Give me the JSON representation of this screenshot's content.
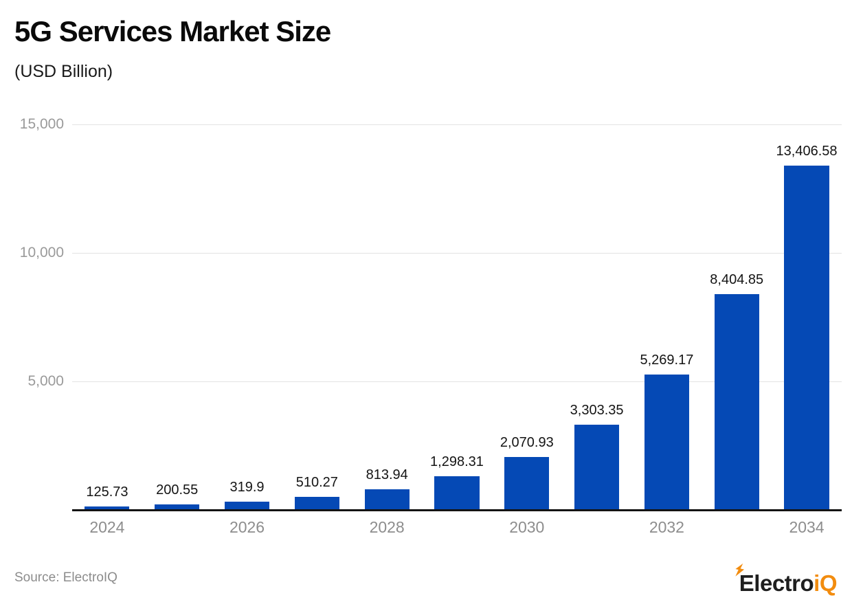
{
  "header": {
    "title": "5G Services Market Size",
    "subtitle": "(USD Billion)"
  },
  "chart_data": {
    "type": "bar",
    "title": "5G Services Market Size",
    "subtitle": "(USD Billion)",
    "xlabel": "",
    "ylabel": "USD Billion",
    "categories": [
      "2024",
      "2025",
      "2026",
      "2027",
      "2028",
      "2029",
      "2030",
      "2031",
      "2032",
      "2033",
      "2034"
    ],
    "values": [
      125.73,
      200.55,
      319.9,
      510.27,
      813.94,
      1298.31,
      2070.93,
      3303.35,
      5269.17,
      8404.85,
      13406.58
    ],
    "value_labels": [
      "125.73",
      "200.55",
      "319.9",
      "510.27",
      "813.94",
      "1,298.31",
      "2,070.93",
      "3,303.35",
      "5,269.17",
      "8,404.85",
      "13,406.58"
    ],
    "x_tick_labels": [
      "2024",
      "2026",
      "2028",
      "2030",
      "2032",
      "2034"
    ],
    "y_ticks": [
      5000,
      10000,
      15000
    ],
    "y_tick_labels": [
      "5,000",
      "10,000",
      "15,000"
    ],
    "ylim": [
      0,
      15000
    ],
    "grid": true,
    "legend": false,
    "colors": {
      "bar": "#0549B5",
      "gridline": "#E3E3E3",
      "axis_line": "#141414",
      "y_tick_label": "#9A9A9A",
      "x_tick_label": "#8D8D8D",
      "value_label": "#141414"
    }
  },
  "footer": {
    "source": "Source: ElectroIQ",
    "logo": {
      "dark_text": "Electro",
      "accent_text": "iQ",
      "accent_color": "#F28C0F",
      "icon": "lightning-bolt"
    }
  }
}
